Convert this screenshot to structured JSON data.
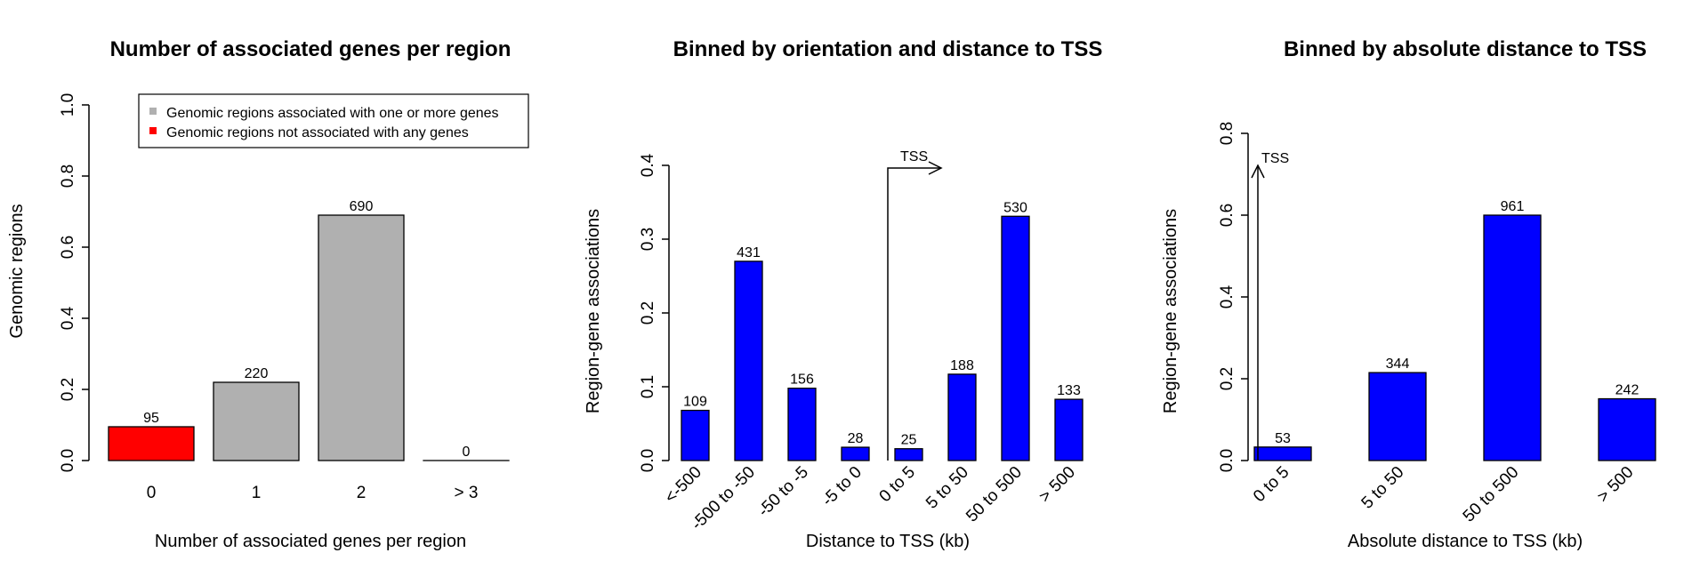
{
  "chart_data": [
    {
      "type": "bar",
      "title": "Number of associated genes per region",
      "xlabel": "Number of associated genes per region",
      "ylabel": "Genomic regions",
      "ylim": [
        0,
        1
      ],
      "yticks": [
        "0.0",
        "0.2",
        "0.4",
        "0.6",
        "0.8",
        "1.0"
      ],
      "categories": [
        "0",
        "1",
        "2",
        "> 3"
      ],
      "values": [
        0.095,
        0.22,
        0.69,
        0.0
      ],
      "labels": [
        "95",
        "220",
        "690",
        "0"
      ],
      "colors": [
        "#ff0000",
        "#b0b0b0",
        "#b0b0b0",
        "#b0b0b0"
      ],
      "label_colors": [
        "#ff0000",
        "#000000",
        "#000000",
        "#000000"
      ],
      "legend": {
        "position": "top-right",
        "entries": [
          {
            "label": "Genomic regions associated with one or more genes",
            "color": "#b0b0b0"
          },
          {
            "label": "Genomic regions not associated with any genes",
            "color": "#ff0000"
          }
        ]
      }
    },
    {
      "type": "bar",
      "title": "Binned by orientation and distance to TSS",
      "xlabel": "Distance to TSS (kb)",
      "ylabel": "Region-gene associations",
      "ylim": [
        0,
        0.4
      ],
      "yticks": [
        "0.0",
        "0.1",
        "0.2",
        "0.3",
        "0.4"
      ],
      "categories": [
        "<-500",
        "-500 to -50",
        "-50 to -5",
        "-5 to 0",
        "0 to 5",
        "5 to 50",
        "50 to 500",
        "> 500"
      ],
      "values": [
        0.068,
        0.27,
        0.098,
        0.018,
        0.016,
        0.117,
        0.331,
        0.083
      ],
      "labels": [
        "109",
        "431",
        "156",
        "28",
        "25",
        "188",
        "530",
        "133"
      ],
      "color": "#0000ff",
      "annotation": "TSS"
    },
    {
      "type": "bar",
      "title": "Binned by absolute distance to TSS",
      "xlabel": "Absolute distance to TSS (kb)",
      "ylabel": "Region-gene associations",
      "ylim": [
        0,
        0.8
      ],
      "yticks": [
        "0.0",
        "0.2",
        "0.4",
        "0.6",
        "0.8"
      ],
      "categories": [
        "0 to 5",
        "5 to 50",
        "50 to 500",
        "> 500"
      ],
      "values": [
        0.033,
        0.215,
        0.6,
        0.151
      ],
      "labels": [
        "53",
        "344",
        "961",
        "242"
      ],
      "color": "#0000ff",
      "annotation": "TSS"
    }
  ]
}
